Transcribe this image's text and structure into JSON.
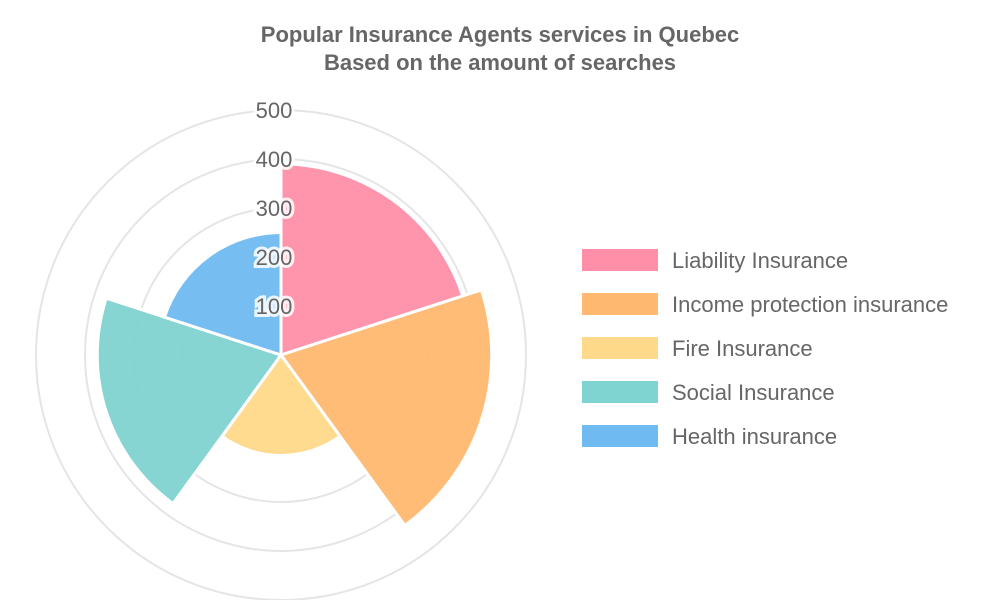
{
  "chart_data": {
    "type": "polar-area",
    "title": [
      "Popular Insurance Agents services in Quebec",
      "Based on the amount of searches"
    ],
    "categories": [
      "Liability Insurance",
      "Income protection insurance",
      "Fire Insurance",
      "Social Insurance",
      "Health insurance"
    ],
    "values": [
      390,
      430,
      205,
      375,
      250
    ],
    "colors": [
      "#ff8fa8",
      "#ffb870",
      "#ffd98a",
      "#7fd3d1",
      "#6fbaf0"
    ],
    "r_ticks": [
      100,
      200,
      300,
      400,
      500
    ],
    "r_range": [
      0,
      520
    ],
    "grid": true,
    "legend_position": "right"
  }
}
